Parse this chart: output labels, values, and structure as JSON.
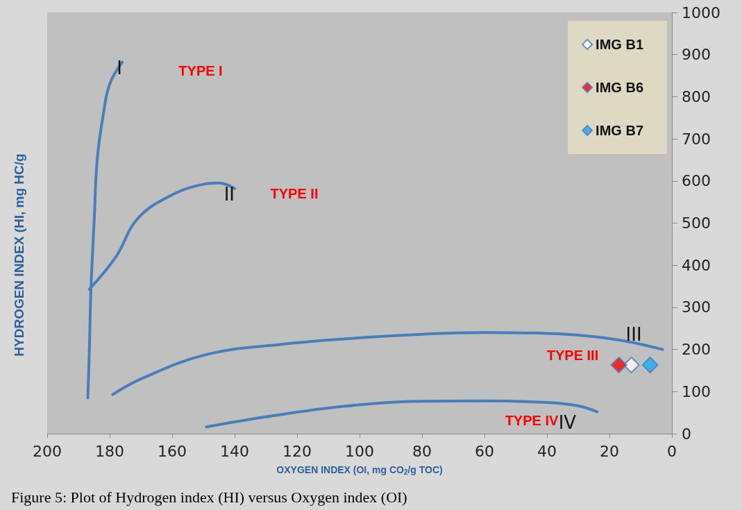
{
  "chart_data": {
    "type": "line",
    "xlabel": "OXYGEN INDEX (OI, mg CO$_{2}$/g TOC)",
    "ylabel": "HYDROGEN INDEX (HI, mg HC/g",
    "xlim": [
      200,
      0
    ],
    "xticks": [
      200,
      180,
      160,
      140,
      120,
      100,
      80,
      60,
      40,
      20,
      0
    ],
    "ylim": [
      0,
      1000
    ],
    "yticks": [
      0,
      100,
      200,
      300,
      400,
      500,
      600,
      700,
      800,
      900,
      1000
    ],
    "grid": false,
    "legend": "top right",
    "marker": "none",
    "series": [
      {
        "name": "I",
        "color": "#4a7ebb",
        "x": [
          187,
          186.5,
          186,
          185,
          184,
          182,
          180,
          176
        ],
        "values": [
          85,
          200,
          343,
          500,
          650,
          760,
          830,
          882
        ]
      },
      {
        "name": "II",
        "color": "#4a7ebb",
        "x": [
          186.5,
          178,
          171,
          160,
          150,
          145,
          140
        ],
        "values": [
          343,
          420,
          511,
          567,
          592,
          595,
          582
        ]
      },
      {
        "name": "III",
        "color": "#4a7ebb",
        "x": [
          179,
          170,
          149,
          125,
          105,
          80,
          60,
          40,
          27,
          15,
          3
        ],
        "values": [
          93,
          130,
          188,
          212,
          225,
          236,
          240,
          238,
          232,
          220,
          200
        ]
      },
      {
        "name": "IV",
        "color": "#4a7ebb",
        "x": [
          149,
          130,
          105,
          80,
          60,
          40,
          30,
          24
        ],
        "values": [
          16,
          40,
          65,
          77,
          78,
          74,
          66,
          52
        ]
      },
      {
        "name": "IMG B1",
        "type": "scatter",
        "marker": "diamond",
        "color": "#ffffff",
        "x": [
          13
        ],
        "values": [
          163
        ]
      },
      {
        "name": "IMG B6",
        "type": "scatter",
        "marker": "diamond",
        "color": "#ff0000",
        "x": [
          17
        ],
        "values": [
          163
        ]
      },
      {
        "name": "IMG B7",
        "type": "scatter",
        "marker": "diamond",
        "color": "#1ea7f0",
        "x": [
          7
        ],
        "values": [
          163
        ]
      }
    ],
    "annotations": [
      "TYPE I",
      "TYPE II",
      "TYPE III",
      "TYPE IV",
      "Figure 5: Plot of Hydrogen index (HI) versus Oxygen index (OI)"
    ]
  }
}
